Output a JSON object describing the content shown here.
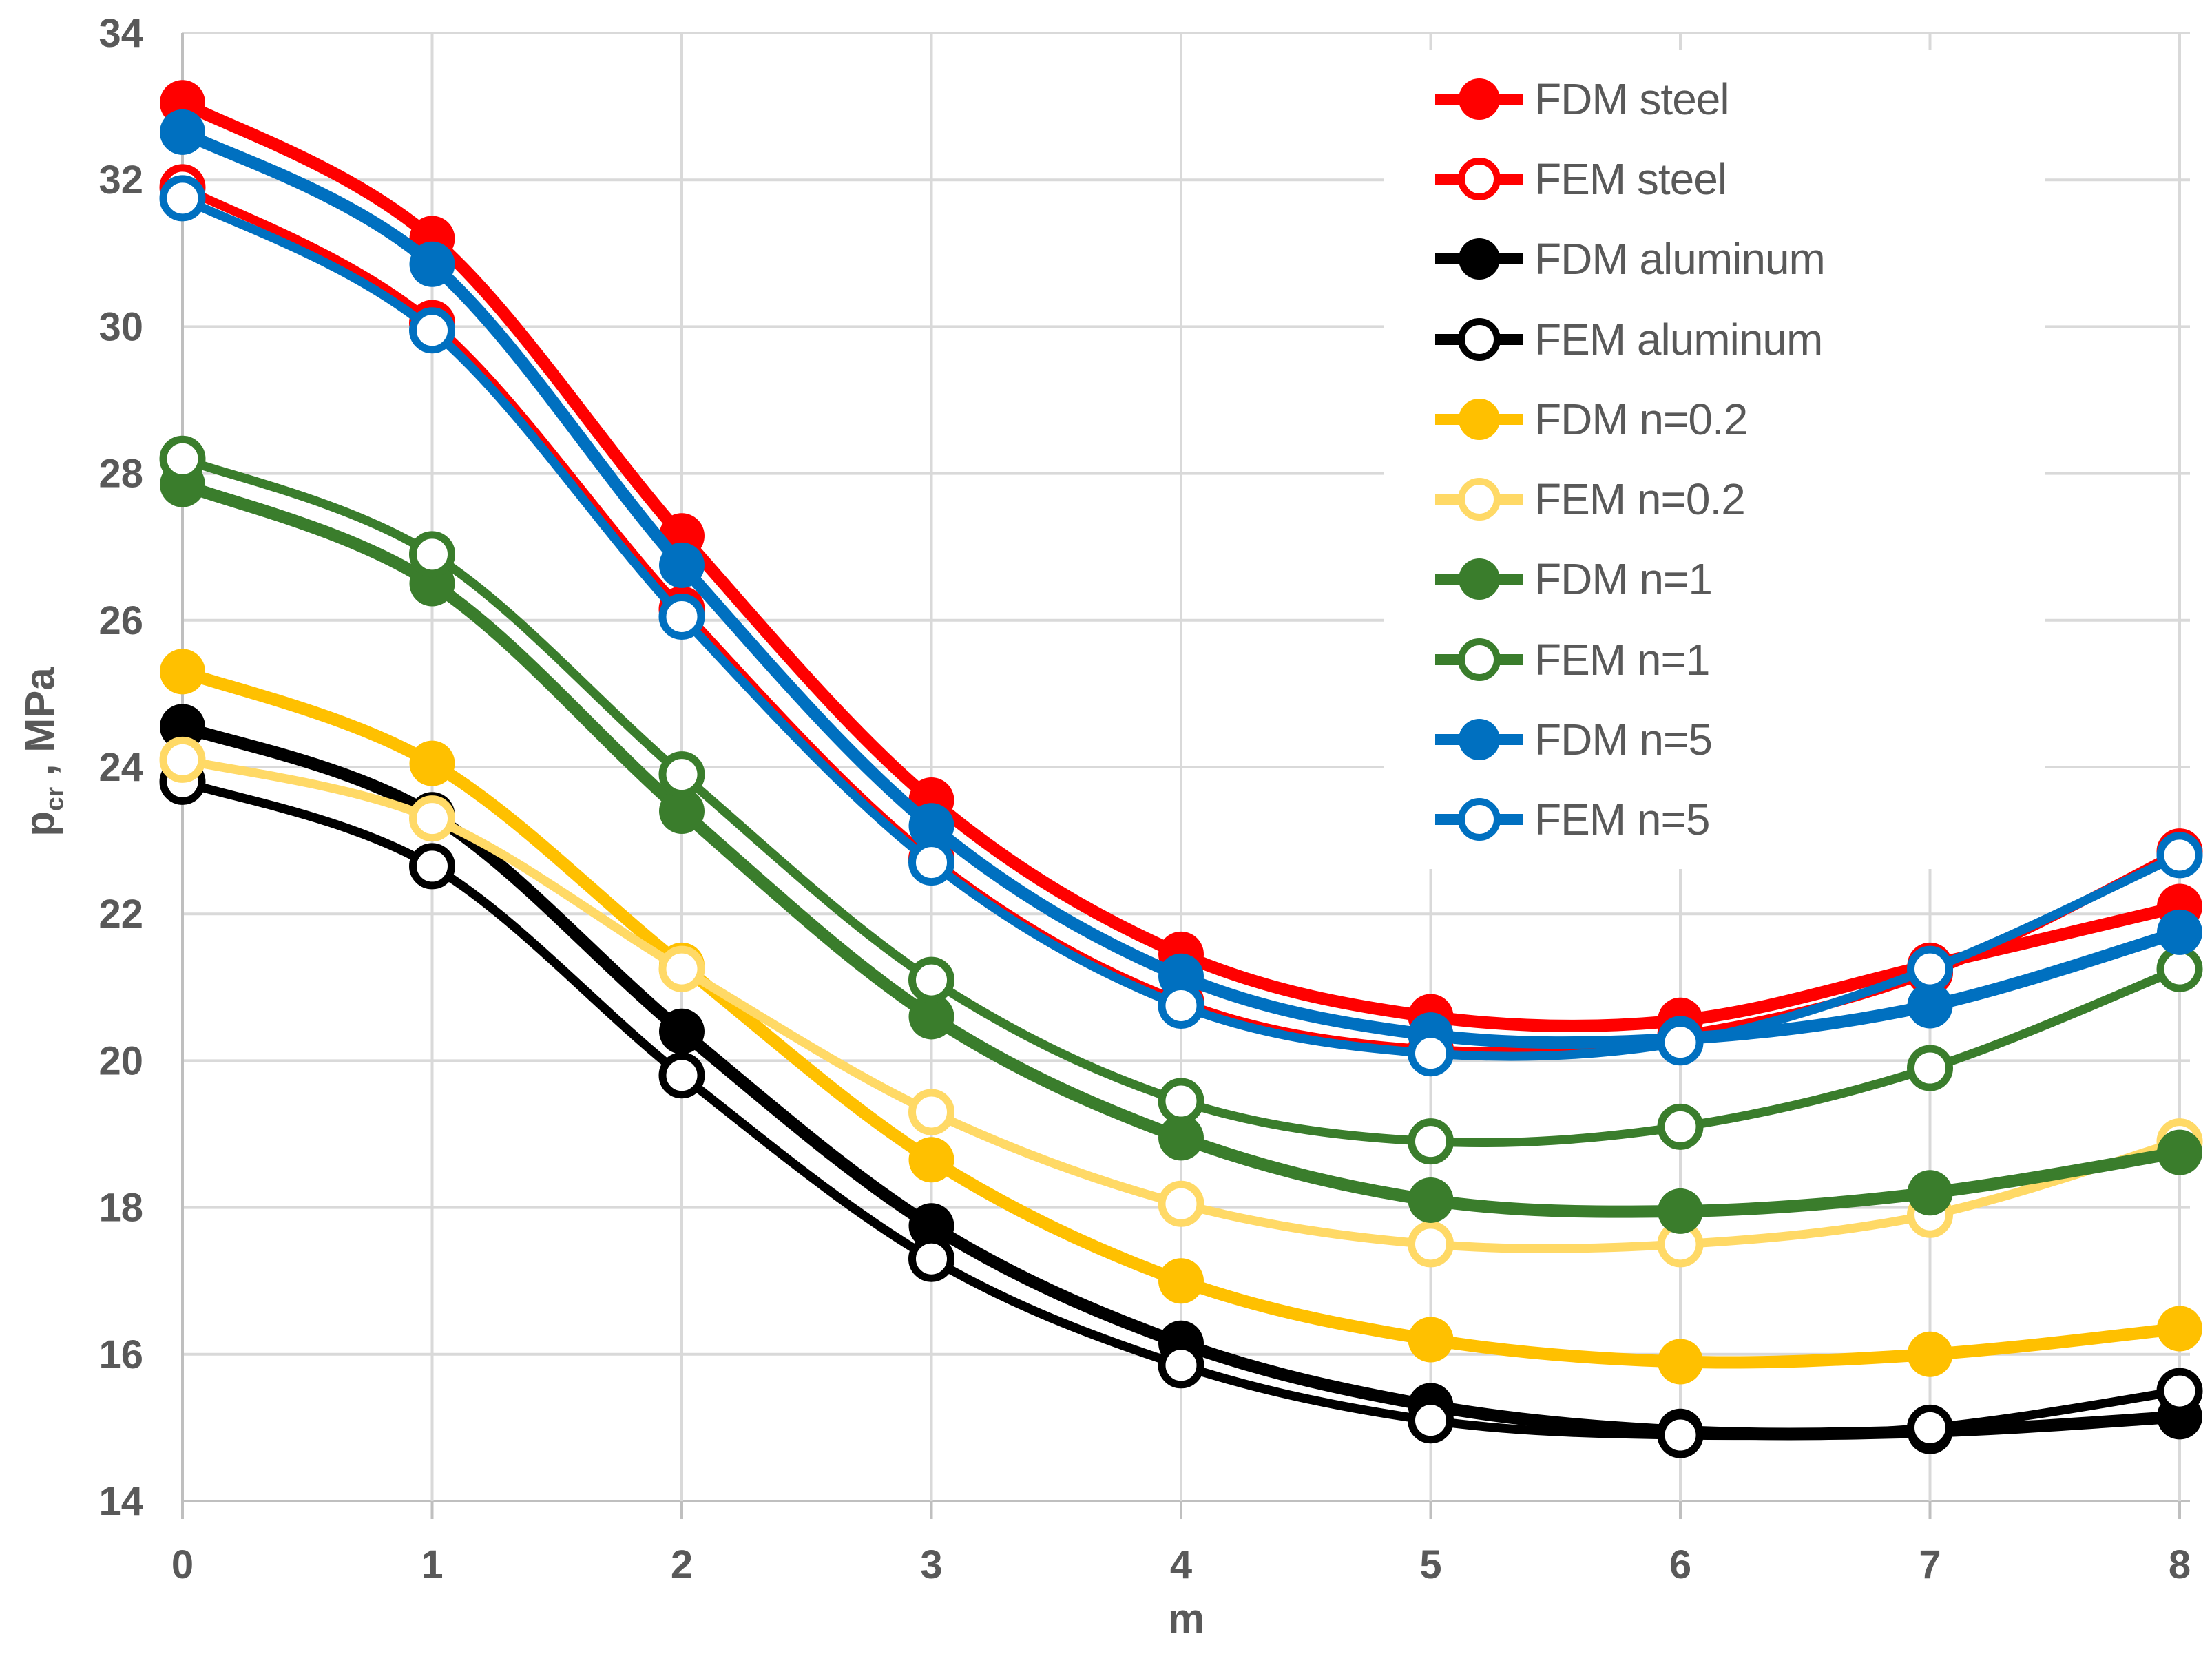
{
  "chart_data": {
    "type": "line",
    "title": "",
    "xlabel": "m",
    "ylabel": "p_cr , MPa",
    "ylabel_parts": {
      "main": "p",
      "sub": "cr",
      "rest": " , MPa"
    },
    "xlim": [
      0,
      8
    ],
    "ylim": [
      14,
      34
    ],
    "x_ticks": [
      0,
      1,
      2,
      3,
      4,
      5,
      6,
      7,
      8
    ],
    "y_ticks": [
      14,
      16,
      18,
      20,
      22,
      24,
      26,
      28,
      30,
      32,
      34
    ],
    "grid": true,
    "legend_position": "inside-top-right",
    "x": [
      0,
      1,
      2,
      3,
      4,
      5,
      6,
      7,
      8
    ],
    "series": [
      {
        "name": "FDM steel",
        "color": "#FF0000",
        "marker": "filled",
        "line_width": 18,
        "values": [
          33.05,
          31.2,
          27.15,
          23.55,
          21.45,
          20.6,
          20.55,
          21.3,
          22.1
        ]
      },
      {
        "name": "FEM steel",
        "color": "#FF0000",
        "marker": "open",
        "line_width": 13,
        "values": [
          31.9,
          30.05,
          26.15,
          22.75,
          20.8,
          20.15,
          20.35,
          21.2,
          22.85
        ]
      },
      {
        "name": "FDM aluminum",
        "color": "#000000",
        "marker": "filled",
        "line_width": 18,
        "values": [
          24.55,
          23.35,
          20.4,
          17.75,
          16.15,
          15.3,
          14.95,
          14.95,
          15.15
        ]
      },
      {
        "name": "FEM aluminum",
        "color": "#000000",
        "marker": "open",
        "line_width": 13,
        "values": [
          23.8,
          22.65,
          19.8,
          17.3,
          15.85,
          15.1,
          14.9,
          15.0,
          15.5
        ]
      },
      {
        "name": "FDM n=0.2",
        "color": "#FFC000",
        "marker": "filled",
        "line_width": 18,
        "values": [
          25.3,
          24.05,
          21.3,
          18.65,
          17.0,
          16.2,
          15.9,
          16.0,
          16.35
        ]
      },
      {
        "name": "FEM n=0.2",
        "color": "#FFD966",
        "marker": "open",
        "line_width": 13,
        "values": [
          24.1,
          23.3,
          21.25,
          19.3,
          18.05,
          17.5,
          17.5,
          17.9,
          18.9
        ]
      },
      {
        "name": "FDM n=1",
        "color": "#3A7D2C",
        "marker": "filled",
        "line_width": 18,
        "values": [
          27.85,
          26.5,
          23.4,
          20.6,
          18.95,
          18.1,
          17.95,
          18.2,
          18.75
        ]
      },
      {
        "name": "FEM n=1",
        "color": "#3A7D2C",
        "marker": "open",
        "line_width": 13,
        "values": [
          28.2,
          26.9,
          23.9,
          21.1,
          19.45,
          18.9,
          19.1,
          19.9,
          21.25
        ]
      },
      {
        "name": "FDM n=5",
        "color": "#0070C0",
        "marker": "filled",
        "line_width": 18,
        "values": [
          32.65,
          30.85,
          26.75,
          23.2,
          21.15,
          20.35,
          20.3,
          20.75,
          21.75
        ]
      },
      {
        "name": "FEM n=5",
        "color": "#0070C0",
        "marker": "open",
        "line_width": 13,
        "values": [
          31.75,
          29.95,
          26.05,
          22.7,
          20.75,
          20.1,
          20.25,
          21.25,
          22.8
        ]
      }
    ],
    "colors": {
      "gridline": "#D9D9D9",
      "axis_line": "#BFBFBF",
      "tick_label": "#595959",
      "legend_text": "#595959"
    }
  }
}
